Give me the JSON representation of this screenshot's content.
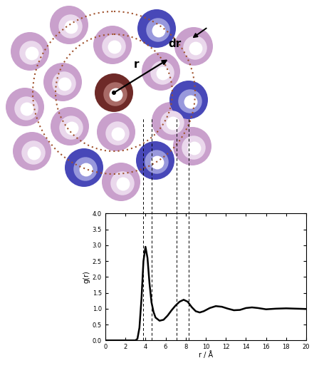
{
  "chart_data": {
    "type": "line",
    "x_label": "r / Å",
    "y_label": "g(r)",
    "x": [
      0,
      3.0,
      3.2,
      3.4,
      3.6,
      3.8,
      4.0,
      4.2,
      4.4,
      4.6,
      4.8,
      5.0,
      5.4,
      5.8,
      6.2,
      6.6,
      7.0,
      7.4,
      7.8,
      8.2,
      8.6,
      9.0,
      9.4,
      9.8,
      10.4,
      11.0,
      11.6,
      12.2,
      12.8,
      13.4,
      14.0,
      14.6,
      15.2,
      16,
      17,
      18,
      19,
      20
    ],
    "values": [
      0,
      0,
      0.05,
      0.4,
      1.3,
      2.5,
      2.95,
      2.6,
      1.8,
      1.2,
      0.9,
      0.72,
      0.62,
      0.65,
      0.78,
      0.95,
      1.1,
      1.22,
      1.28,
      1.22,
      1.05,
      0.92,
      0.88,
      0.92,
      1.02,
      1.08,
      1.06,
      1.0,
      0.95,
      0.96,
      1.02,
      1.04,
      1.02,
      0.98,
      1.0,
      1.01,
      1.0,
      0.99
    ],
    "color": "#000000",
    "xlim": [
      0,
      20
    ],
    "ylim": [
      0,
      4
    ],
    "xticks": [
      0,
      2,
      4,
      6,
      8,
      10,
      12,
      14,
      16,
      18,
      20
    ],
    "yticks": [
      {
        "value": 0,
        "label": "0.0"
      },
      {
        "value": 0.5,
        "label": "0.5"
      },
      {
        "value": 1,
        "label": "1.0"
      },
      {
        "value": 1.5,
        "label": "1.5"
      },
      {
        "value": 2,
        "label": "2.0"
      },
      {
        "value": 2.5,
        "label": "2.5"
      },
      {
        "value": 3,
        "label": "3.0"
      },
      {
        "value": 3.5,
        "label": "3.5"
      },
      {
        "value": 4,
        "label": "4.0"
      }
    ],
    "shell_edges": [
      3.8,
      4.6,
      7.1,
      8.3
    ]
  },
  "diagram": {
    "r_label": "r",
    "dr_label": "dr"
  }
}
